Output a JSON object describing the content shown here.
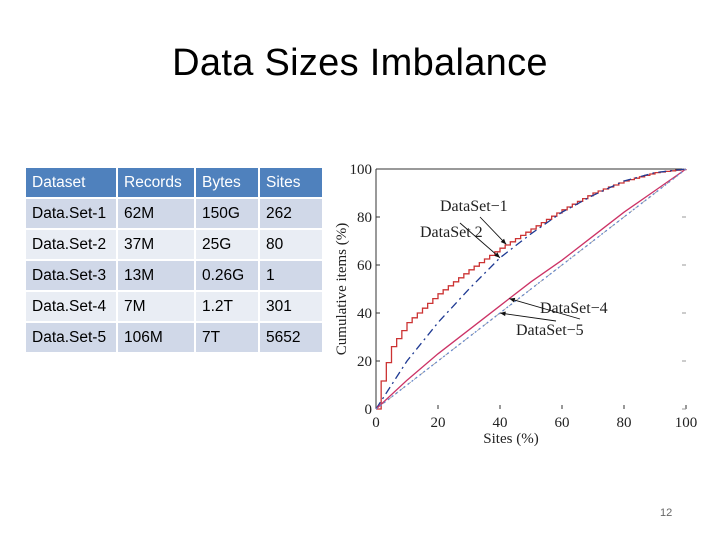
{
  "slide": {
    "title": "Data Sizes Imbalance",
    "page_number": "12"
  },
  "table": {
    "headers": [
      "Dataset",
      "Records",
      "Bytes",
      "Sites"
    ],
    "rows": [
      [
        "Data.Set-1",
        "62M",
        "150G",
        "262"
      ],
      [
        "Data.Set-2",
        "37M",
        "25G",
        "80"
      ],
      [
        "Data.Set-3",
        "13M",
        "0.26G",
        "1"
      ],
      [
        "Data.Set-4",
        "7M",
        "1.2T",
        "301"
      ],
      [
        "Data.Set-5",
        "106M",
        "7T",
        "5652"
      ]
    ]
  },
  "chart_data": {
    "type": "line",
    "xlabel": "Sites (%)",
    "ylabel": "Cumulative items (%)",
    "xlim": [
      0,
      100
    ],
    "ylim": [
      0,
      100
    ],
    "xticks": [
      0,
      20,
      40,
      60,
      80,
      100
    ],
    "yticks": [
      0,
      20,
      40,
      60,
      80,
      100
    ],
    "series": [
      {
        "name": "DataSet−1",
        "color": "#cc3333",
        "dash": "none",
        "step": true,
        "x": [
          0,
          2,
          5,
          10,
          15,
          20,
          30,
          40,
          50,
          60,
          70,
          80,
          90,
          100
        ],
        "y": [
          0,
          14,
          26,
          36,
          42,
          48,
          58,
          67,
          75,
          83,
          90,
          95,
          98.5,
          100
        ]
      },
      {
        "name": "DataSet 2",
        "color": "#1f3a93",
        "dash": "8 4 2 4",
        "step": false,
        "x": [
          0,
          10,
          20,
          30,
          40,
          50,
          60,
          70,
          80,
          90,
          100
        ],
        "y": [
          0,
          20,
          36,
          50,
          63,
          73,
          82,
          89,
          95,
          98.5,
          100
        ]
      },
      {
        "name": "DataSet−4",
        "color": "#cc3366",
        "dash": "none",
        "step": false,
        "x": [
          0,
          10,
          20,
          30,
          40,
          50,
          60,
          70,
          80,
          90,
          100
        ],
        "y": [
          0,
          12,
          23,
          33,
          43,
          53,
          62,
          72,
          82,
          91,
          100
        ]
      },
      {
        "name": "DataSet−5",
        "color": "#6688cc",
        "dash": "2 3",
        "step": false,
        "x": [
          0,
          10,
          20,
          30,
          40,
          50,
          60,
          70,
          80,
          90,
          100
        ],
        "y": [
          0,
          10,
          20,
          30,
          40,
          50,
          60,
          70,
          80,
          90,
          100
        ]
      }
    ],
    "annotations": [
      {
        "text": "DataSet−1",
        "series": "DataSet−1",
        "at_x": 42
      },
      {
        "text": "DataSet  2",
        "series": "DataSet 2",
        "at_x": 40
      },
      {
        "text": "DataSet−4",
        "series": "DataSet−4",
        "at_x": 43
      },
      {
        "text": "DataSet−5",
        "series": "DataSet−5",
        "at_x": 40
      }
    ]
  }
}
